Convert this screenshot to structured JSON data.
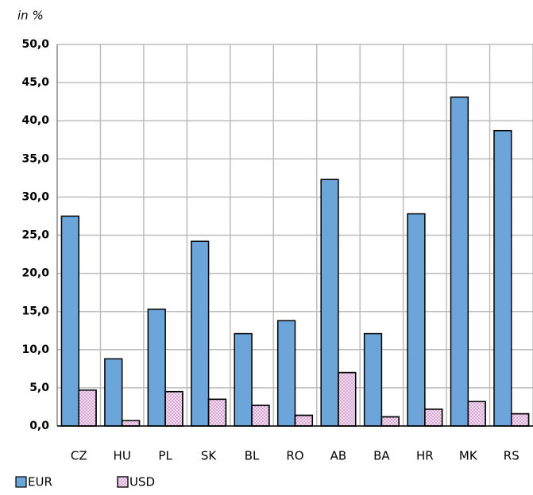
{
  "chart_data": {
    "type": "bar",
    "y_axis_label": "in %",
    "categories": [
      "CZ",
      "HU",
      "PL",
      "SK",
      "BL",
      "RO",
      "AB",
      "BA",
      "HR",
      "MK",
      "RS"
    ],
    "series": [
      {
        "name": "EUR",
        "color": "#6ca5d9",
        "values": [
          27.5,
          8.8,
          15.3,
          24.2,
          12.1,
          13.8,
          32.3,
          12.1,
          27.8,
          43.1,
          38.7
        ]
      },
      {
        "name": "USD",
        "color": "#f3d6ef",
        "values": [
          4.7,
          0.7,
          4.5,
          3.5,
          2.7,
          1.4,
          7.0,
          1.2,
          2.2,
          3.2,
          1.6
        ]
      }
    ],
    "ylim": [
      0,
      50
    ],
    "yticks": [
      {
        "value": 0,
        "label": "0,0"
      },
      {
        "value": 5,
        "label": "5,0"
      },
      {
        "value": 10,
        "label": "10,0"
      },
      {
        "value": 15,
        "label": "15,0"
      },
      {
        "value": 20,
        "label": "20,0"
      },
      {
        "value": 25,
        "label": "25,0"
      },
      {
        "value": 30,
        "label": "30,0"
      },
      {
        "value": 35,
        "label": "35,0"
      },
      {
        "value": 40,
        "label": "40,0"
      },
      {
        "value": 45,
        "label": "45,0"
      },
      {
        "value": 50,
        "label": "50,0"
      }
    ],
    "grid": true,
    "legend": "bottom-left"
  }
}
